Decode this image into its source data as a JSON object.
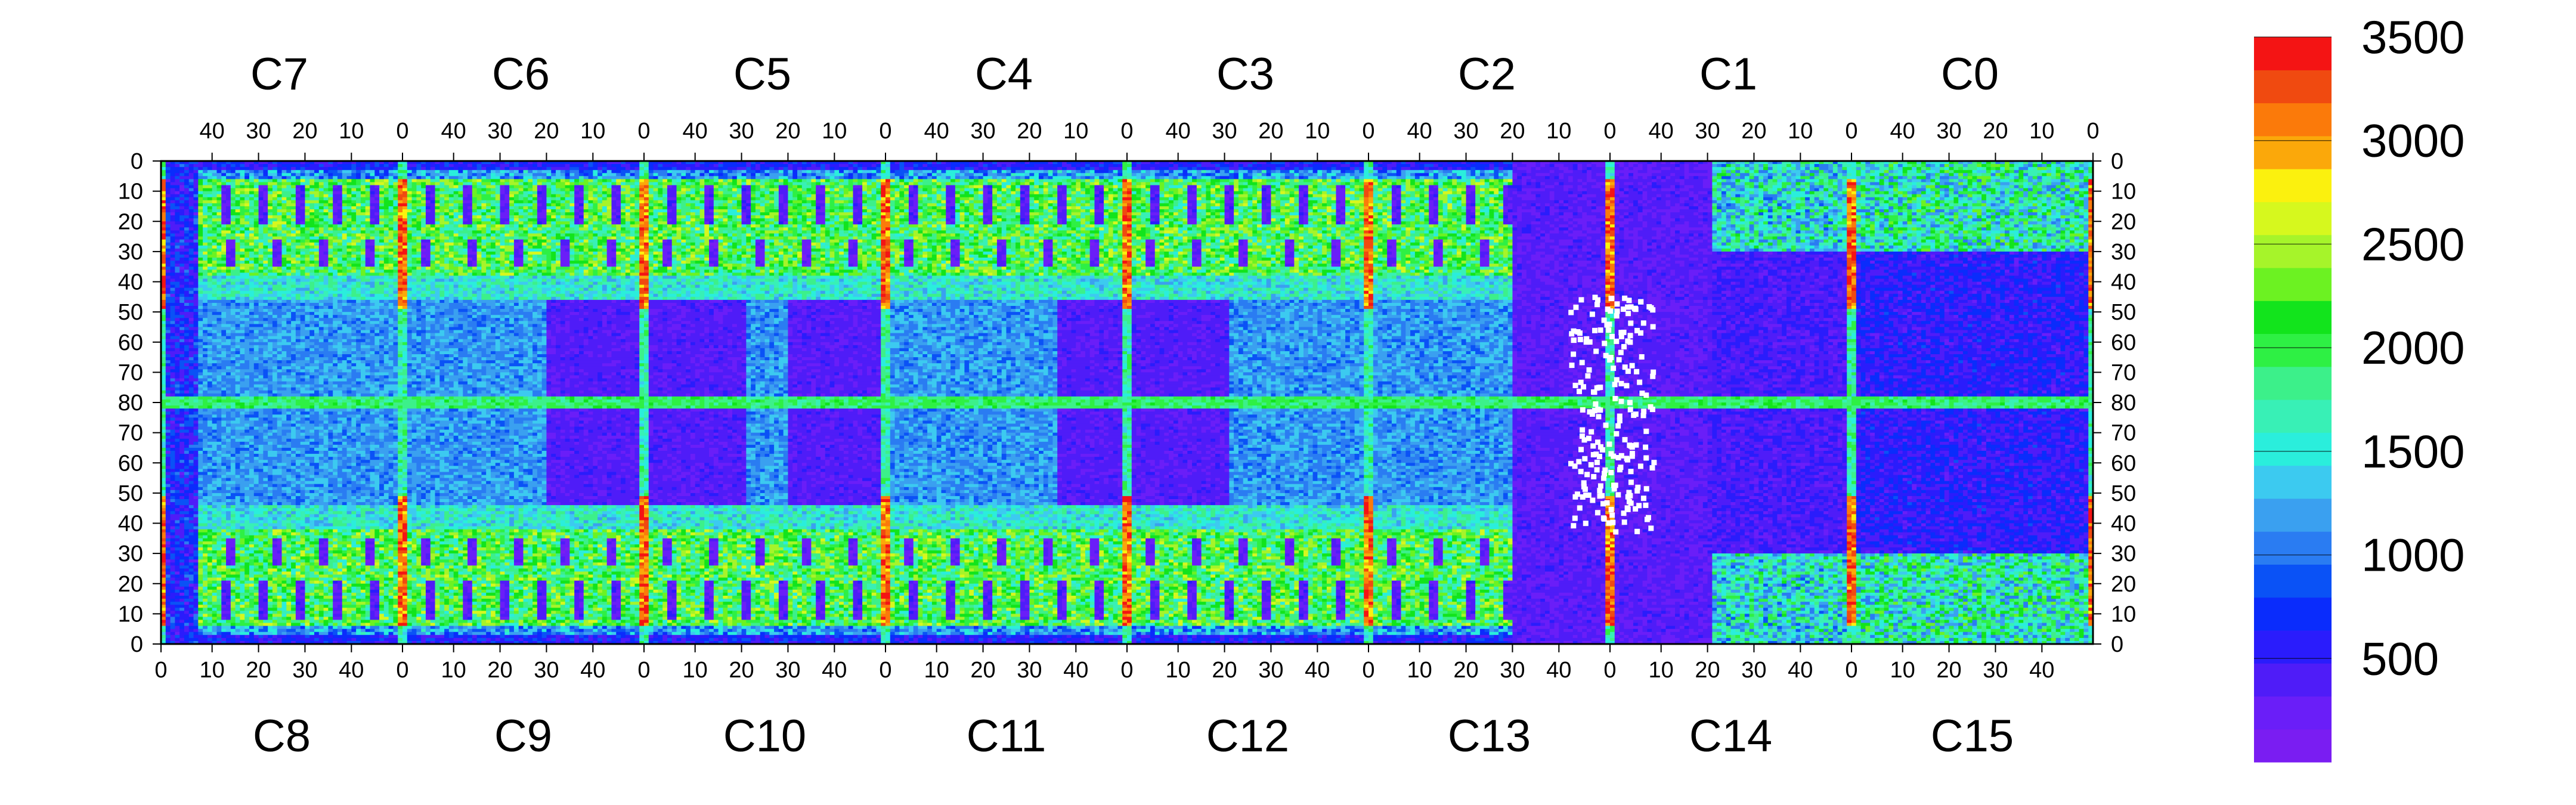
{
  "chart_data": {
    "type": "heatmap",
    "title": "",
    "xlabel": "",
    "ylabel": "",
    "top_chips": [
      "C7",
      "C6",
      "C5",
      "C4",
      "C3",
      "C2",
      "C1",
      "C0"
    ],
    "bottom_chips": [
      "C8",
      "C9",
      "C10",
      "C11",
      "C12",
      "C13",
      "C14",
      "C15"
    ],
    "top_ticks": [
      "40",
      "30",
      "20",
      "10",
      "0"
    ],
    "bottom_ticks": [
      "0",
      "10",
      "20",
      "30",
      "40"
    ],
    "left_ticks": [
      "0",
      "10",
      "20",
      "30",
      "40",
      "50",
      "60",
      "70",
      "80",
      "70",
      "60",
      "50",
      "40",
      "30",
      "20",
      "10",
      "0"
    ],
    "columns_per_chip": 52,
    "rows": 160,
    "zlim": [
      0,
      3500
    ],
    "colorbar_ticks": [
      "500",
      "1000",
      "1500",
      "2000",
      "2500",
      "3000",
      "3500"
    ],
    "colorbar_levels": 20,
    "notes_regions": {
      "hot_columns": "column 0 of each chip (red stripes between chips)",
      "dead_region": "C13/C14 area near C2/C1 border, low occupancy with white empty pixels"
    }
  },
  "colors": {
    "palette": [
      "#7a1df2",
      "#6a1ef8",
      "#4f1cf8",
      "#2a1cfc",
      "#0a2cfc",
      "#0a52f6",
      "#2a7cf2",
      "#3aa0f0",
      "#3ccaf0",
      "#2aeedc",
      "#38f0b6",
      "#3cf08a",
      "#2ef044",
      "#12e41c",
      "#6cf222",
      "#a6f42a",
      "#d6f81e",
      "#fbf10e",
      "#fba80a",
      "#fb7a0a",
      "#f04a10",
      "#f41414"
    ]
  }
}
